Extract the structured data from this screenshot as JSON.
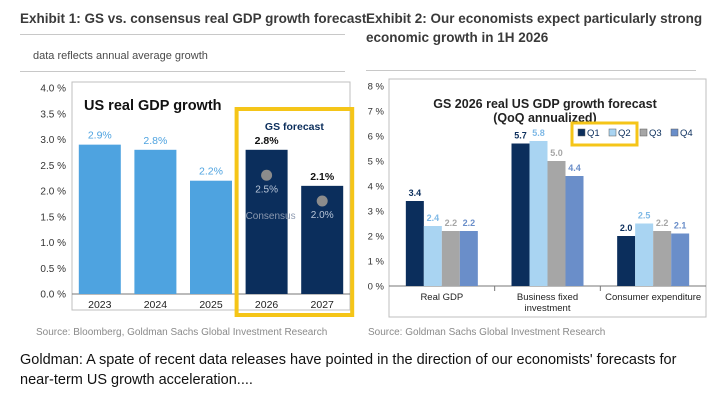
{
  "exhibit1": {
    "title": "Exhibit 1: GS vs. consensus real GDP growth forecast",
    "subtitle": "data reflects annual average growth",
    "source": "Source: Bloomberg, Goldman Sachs Global Investment Research"
  },
  "exhibit2": {
    "title_line1": "Exhibit 2: Our economists expect particularly strong",
    "title_line2": "economic growth in 1H 2026",
    "source": "Source: Goldman Sachs Global Investment Research"
  },
  "caption": "Goldman: A spate of recent data releases have pointed in the direction of our economists' forecasts for near-term US growth acceleration....",
  "chart_data": [
    {
      "type": "bar",
      "title": "US real GDP growth",
      "categories": [
        "2023",
        "2024",
        "2025",
        "2026",
        "2027"
      ],
      "values": [
        2.9,
        2.8,
        2.2,
        2.8,
        2.1
      ],
      "value_labels": [
        "2.9%",
        "2.8%",
        "2.2%",
        "2.8%",
        "2.1%"
      ],
      "consensus_values": [
        null,
        null,
        null,
        2.5,
        2.0
      ],
      "consensus_labels": [
        "",
        "",
        "",
        "2.5%",
        "2.0%"
      ],
      "consensus_name": "Consensus",
      "highlight_label": "GS forecast",
      "highlight_categories": [
        "2026",
        "2027"
      ],
      "ylim": [
        0,
        4.0
      ],
      "yticks": [
        0,
        0.5,
        1.0,
        1.5,
        2.0,
        2.5,
        3.0,
        3.5,
        4.0
      ],
      "ytick_labels": [
        "0.0 %",
        "0.5 %",
        "1.0 %",
        "1.5 %",
        "2.0 %",
        "2.5 %",
        "3.0 %",
        "3.5 %",
        "4.0 %"
      ],
      "grid": false,
      "colors": {
        "actual": "#4ea3e0",
        "forecast": "#0b2e5c",
        "highlight": "#f5c518",
        "consensus": "#8c8c8c"
      }
    },
    {
      "type": "bar",
      "title_line1": "GS 2026 real US GDP growth forecast",
      "title_line2": "(QoQ annualized)",
      "categories": [
        "Real GDP",
        "Business fixed investment",
        "Consumer expenditure"
      ],
      "category_labels": [
        [
          "Real GDP"
        ],
        [
          "Business fixed",
          "investment"
        ],
        [
          "Consumer expenditure"
        ]
      ],
      "series": [
        {
          "name": "Q1",
          "values": [
            3.4,
            5.7,
            2.0
          ],
          "labels": [
            "3.4",
            "5.7",
            "2.0"
          ],
          "color": "#0b2e5c"
        },
        {
          "name": "Q2",
          "values": [
            2.4,
            5.8,
            2.5
          ],
          "labels": [
            "2.4",
            "5.8",
            "2.5"
          ],
          "color": "#a9d4f2"
        },
        {
          "name": "Q3",
          "values": [
            2.2,
            5.0,
            2.2
          ],
          "labels": [
            "2.2",
            "5.0",
            "2.2"
          ],
          "color": "#a6a6a6"
        },
        {
          "name": "Q4",
          "values": [
            2.2,
            4.4,
            2.1
          ],
          "labels": [
            "2.2",
            "4.4",
            "2.1"
          ],
          "color": "#6a8ec9"
        }
      ],
      "highlight_series": [
        "Q1",
        "Q2"
      ],
      "ylim": [
        0,
        8
      ],
      "yticks": [
        0,
        1,
        2,
        3,
        4,
        5,
        6,
        7,
        8
      ],
      "ytick_labels": [
        "0 %",
        "1 %",
        "2 %",
        "3 %",
        "4 %",
        "5 %",
        "6 %",
        "7 %",
        "8 %"
      ],
      "legend": "top-right",
      "grid": false
    }
  ]
}
